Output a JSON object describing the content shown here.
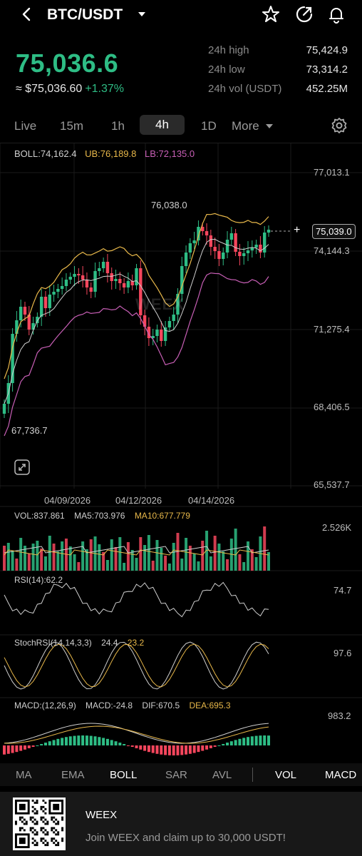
{
  "header": {
    "pair": "BTC/USDT",
    "icons": [
      "back-arrow-icon",
      "caret-down-icon",
      "star-icon",
      "share-icon",
      "bell-icon"
    ]
  },
  "ticker": {
    "last_price": "75,036.6",
    "fiat_price": "≈ $75,036.60",
    "change": "+1.37%",
    "stats": [
      {
        "label": "24h high",
        "value": "75,424.9"
      },
      {
        "label": "24h low",
        "value": "73,314.2"
      },
      {
        "label": "24h vol (USDT)",
        "value": "452.25M"
      }
    ]
  },
  "timeframes": [
    "Live",
    "15m",
    "1h",
    "4h",
    "1D",
    "More"
  ],
  "active_timeframe": "4h",
  "boll": {
    "mid": "BOLL:74,162.4",
    "ub": "UB:76,189.8",
    "lb": "LB:72,135.0"
  },
  "price_axis": [
    "77,013.1",
    "74,144.3",
    "71,275.4",
    "68,406.5",
    "65,537.7"
  ],
  "current_price_tag": "75,039.0",
  "high_annotation": "76,038.0",
  "low_annotation": "67,736.7",
  "watermark": "WEEX",
  "dates": [
    "04/09/2026",
    "04/12/2026",
    "04/14/2026"
  ],
  "volume": {
    "vol": "VOL:837.861",
    "ma5": "MA5:703.976",
    "ma10": "MA10:677.779",
    "axis": "2.526K"
  },
  "rsi": {
    "label": "RSI(14):62.2",
    "axis": "74.7"
  },
  "stochrsi": {
    "label": "StochRSI(14,14,3,3)",
    "k": "24.4",
    "d": "23.2",
    "axis": "97.6"
  },
  "macd": {
    "label": "MACD:(12,26,9)",
    "macd": "MACD:-24.8",
    "dif": "DIF:670.5",
    "dea": "DEA:695.3",
    "axis": "983.2"
  },
  "indicators": [
    "MA",
    "EMA",
    "BOLL",
    "SAR",
    "AVL",
    "VOL",
    "MACD"
  ],
  "active_indicators": [
    "BOLL",
    "VOL",
    "MACD"
  ],
  "promo": {
    "title": "WEEX",
    "text": "Join WEEX and claim up to 30,000 USDT!"
  },
  "colors": {
    "up": "#2ebd85",
    "down": "#f6465d",
    "boll_mid": "#cfcfcf",
    "boll_ub": "#e8b84a",
    "boll_lb": "#c85fb6",
    "background": "#000000"
  }
}
